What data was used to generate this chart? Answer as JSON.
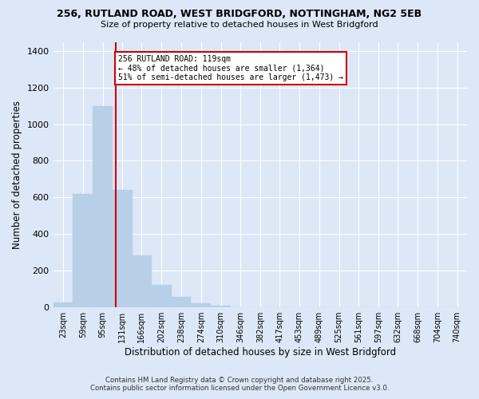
{
  "title_line1": "256, RUTLAND ROAD, WEST BRIDGFORD, NOTTINGHAM, NG2 5EB",
  "title_line2": "Size of property relative to detached houses in West Bridgford",
  "xlabel": "Distribution of detached houses by size in West Bridgford",
  "ylabel": "Number of detached properties",
  "footnote1": "Contains HM Land Registry data © Crown copyright and database right 2025.",
  "footnote2": "Contains public sector information licensed under the Open Government Licence v3.0.",
  "bar_labels": [
    "23sqm",
    "59sqm",
    "95sqm",
    "131sqm",
    "166sqm",
    "202sqm",
    "238sqm",
    "274sqm",
    "310sqm",
    "346sqm",
    "382sqm",
    "417sqm",
    "453sqm",
    "489sqm",
    "525sqm",
    "561sqm",
    "597sqm",
    "632sqm",
    "668sqm",
    "704sqm",
    "740sqm"
  ],
  "bar_values": [
    25,
    620,
    1100,
    640,
    280,
    120,
    55,
    18,
    8,
    0,
    0,
    0,
    0,
    0,
    0,
    0,
    0,
    0,
    0,
    0,
    0
  ],
  "bar_color": "#b8cfe8",
  "bg_color": "#dce8f8",
  "grid_color": "#ffffff",
  "vline_x": 119,
  "annotation_title": "256 RUTLAND ROAD: 119sqm",
  "annotation_line2": "← 48% of detached houses are smaller (1,364)",
  "annotation_line3": "51% of semi-detached houses are larger (1,473) →",
  "red_color": "#cc0000",
  "ylim_max": 1450,
  "yticks": [
    0,
    200,
    400,
    600,
    800,
    1000,
    1200,
    1400
  ]
}
